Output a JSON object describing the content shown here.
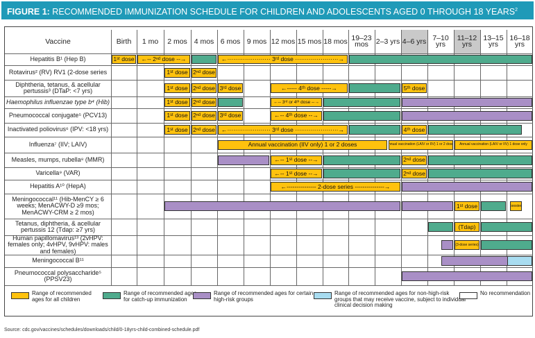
{
  "figure": {
    "label": "FIGURE 1:",
    "title": "RECOMMENDED IMMUNIZATION SCHEDULE FOR CHILDREN AND ADOLESCENTS AGED 0 THROUGH 18 YEARS",
    "title_sup": "2",
    "source": "Source: cdc.gov/vaccines/schedules/downloads/child/0-18yrs-child-combined-schedule.pdf"
  },
  "colors": {
    "banner": "#1f9ab8",
    "recommended": "#ffc20e",
    "catch_up": "#4fab8d",
    "high_risk": "#a98fc6",
    "non_high_risk": "#a8dcf0",
    "none": "#ffffff",
    "shaded_header": "#c9c9c9"
  },
  "header": {
    "vaccine_label": "Vaccine",
    "columns": [
      {
        "label": "Birth",
        "shaded": false
      },
      {
        "label": "1 mo",
        "shaded": false
      },
      {
        "label": "2 mos",
        "shaded": false
      },
      {
        "label": "4 mos",
        "shaded": false
      },
      {
        "label": "6 mos",
        "shaded": false
      },
      {
        "label": "9 mos",
        "shaded": false
      },
      {
        "label": "12 mos",
        "shaded": false
      },
      {
        "label": "15 mos",
        "shaded": false
      },
      {
        "label": "18 mos",
        "shaded": false
      },
      {
        "label": "19–23 mos",
        "shaded": false
      },
      {
        "label": "2–3 yrs",
        "shaded": false
      },
      {
        "label": "4–6 yrs",
        "shaded": true
      },
      {
        "label": "7–10 yrs",
        "shaded": false
      },
      {
        "label": "11–12 yrs",
        "shaded": true
      },
      {
        "label": "13–15 yrs",
        "shaded": false
      },
      {
        "label": "16–18 yrs",
        "shaded": false
      }
    ]
  },
  "rows": [
    {
      "name": "Hepatitis B¹ (Hep B)",
      "italic": false,
      "bars": [
        {
          "c": "y",
          "from": 0,
          "to": 1,
          "label": "1ˢᵗ dose"
        },
        {
          "c": "y",
          "from": 1,
          "to": 3,
          "label": "←-- 2ⁿᵈ dose --→"
        },
        {
          "c": "g",
          "from": 3,
          "to": 4,
          "label": ""
        },
        {
          "c": "y",
          "from": 4,
          "to": 9,
          "label": "←······················ 3ʳᵈ dose ······················→"
        },
        {
          "c": "g",
          "from": 9,
          "to": 16,
          "label": ""
        }
      ]
    },
    {
      "name": "Rotavirus² (RV) RV1 (2-dose series",
      "italic": false,
      "bars": [
        {
          "c": "y",
          "from": 2,
          "to": 3,
          "label": "1ˢᵗ dose"
        },
        {
          "c": "y",
          "from": 3,
          "to": 4,
          "label": "2ⁿᵈ dose"
        }
      ]
    },
    {
      "name": "Diphtheria, tetanus, & acellular pertussis³ (DTaP: <7 yrs)",
      "italic": false,
      "bars": [
        {
          "c": "y",
          "from": 2,
          "to": 3,
          "label": "1ˢᵗ dose"
        },
        {
          "c": "y",
          "from": 3,
          "to": 4,
          "label": "2ⁿᵈ dose"
        },
        {
          "c": "y",
          "from": 4,
          "to": 5,
          "label": "3ʳᵈ dose"
        },
        {
          "c": "y",
          "from": 6,
          "to": 9,
          "label": "←----- 4ᵗʰ dose -----→"
        },
        {
          "c": "g",
          "from": 9,
          "to": 11,
          "label": ""
        },
        {
          "c": "y",
          "from": 11,
          "to": 12,
          "label": "5ᵗʰ dose"
        }
      ]
    },
    {
      "name": "Haemophilus influenzae type b⁴ (Hib)",
      "italic": true,
      "bars": [
        {
          "c": "y",
          "from": 2,
          "to": 3,
          "label": "1ˢᵗ dose"
        },
        {
          "c": "y",
          "from": 3,
          "to": 4,
          "label": "2ⁿᵈ dose"
        },
        {
          "c": "g",
          "from": 4,
          "to": 5,
          "label": ""
        },
        {
          "c": "y",
          "from": 6,
          "to": 8,
          "label": "←-- 3ʳᵈ or 4ᵗʰ dose --→",
          "size": "small"
        },
        {
          "c": "g",
          "from": 8,
          "to": 11,
          "label": ""
        },
        {
          "c": "p",
          "from": 11,
          "to": 16,
          "label": ""
        }
      ]
    },
    {
      "name": "Pneumococcal conjugate⁵ (PCV13)",
      "italic": false,
      "bars": [
        {
          "c": "y",
          "from": 2,
          "to": 3,
          "label": "1ˢᵗ dose"
        },
        {
          "c": "y",
          "from": 3,
          "to": 4,
          "label": "2ⁿᵈ dose"
        },
        {
          "c": "y",
          "from": 4,
          "to": 5,
          "label": "3ʳᵈ dose"
        },
        {
          "c": "y",
          "from": 6,
          "to": 8,
          "label": "←-- 4ᵗʰ dose --→"
        },
        {
          "c": "g",
          "from": 8,
          "to": 11,
          "label": ""
        },
        {
          "c": "p",
          "from": 11,
          "to": 16,
          "label": ""
        }
      ]
    },
    {
      "name": "Inactivated poliovirus⁶ (IPV: <18 yrs)",
      "italic": false,
      "bars": [
        {
          "c": "y",
          "from": 2,
          "to": 3,
          "label": "1ˢᵗ dose"
        },
        {
          "c": "y",
          "from": 3,
          "to": 4,
          "label": "2ⁿᵈ dose"
        },
        {
          "c": "y",
          "from": 4,
          "to": 9,
          "label": "←······················ 3ʳᵈ dose ······················→"
        },
        {
          "c": "g",
          "from": 9,
          "to": 11,
          "label": ""
        },
        {
          "c": "y",
          "from": 11,
          "to": 12,
          "label": "4ᵗʰ dose"
        },
        {
          "c": "g",
          "from": 12,
          "to": 15.6,
          "label": ""
        }
      ]
    },
    {
      "name": "Influenza⁷ (IIV; LAIV)",
      "italic": false,
      "bars": [
        {
          "c": "y",
          "from": 4,
          "to": 10.5,
          "label": "Annual vaccination (IIV only) 1 or 2 doses"
        },
        {
          "c": "y",
          "from": 10.5,
          "to": 13,
          "label": "Annual vaccination (LAIV or IIV) 1 or 2 doses",
          "size": "tiny"
        },
        {
          "c": "y",
          "from": 13,
          "to": 16,
          "label": "Annual vaccination (LAIV or IIV) 1 dose only",
          "size": "tiny"
        }
      ]
    },
    {
      "name": "Measles, mumps, rubella⁸ (MMR)",
      "italic": false,
      "bars": [
        {
          "c": "p",
          "from": 4,
          "to": 6,
          "label": ""
        },
        {
          "c": "y",
          "from": 6,
          "to": 8,
          "label": "←-- 1ˢᵗ dose --→"
        },
        {
          "c": "g",
          "from": 8,
          "to": 11,
          "label": ""
        },
        {
          "c": "y",
          "from": 11,
          "to": 12,
          "label": "2ⁿᵈ dose"
        },
        {
          "c": "g",
          "from": 12,
          "to": 16,
          "label": ""
        }
      ]
    },
    {
      "name": "Varicella⁹ (VAR)",
      "italic": false,
      "bars": [
        {
          "c": "y",
          "from": 6,
          "to": 8,
          "label": "←-- 1ˢᵗ dose --→"
        },
        {
          "c": "g",
          "from": 8,
          "to": 11,
          "label": ""
        },
        {
          "c": "y",
          "from": 11,
          "to": 12,
          "label": "2ⁿᵈ dose"
        },
        {
          "c": "g",
          "from": 12,
          "to": 16,
          "label": ""
        }
      ]
    },
    {
      "name": "Hepatitis A¹⁰ (HepA)",
      "italic": false,
      "bars": [
        {
          "c": "y",
          "from": 6,
          "to": 11,
          "label": "←--------------- 2-dose series ---------------→"
        },
        {
          "c": "p",
          "from": 11,
          "to": 16,
          "label": ""
        }
      ]
    },
    {
      "name": "Meningococcal¹¹ (Hib-MenCY ≥ 6 weeks; MenACWY-D ≥9 mos; MenACWY-CRM ≥ 2 mos)",
      "italic": false,
      "bars": [
        {
          "c": "p",
          "from": 2,
          "to": 11,
          "label": ""
        },
        {
          "c": "p",
          "from": 11,
          "to": 13,
          "label": ""
        },
        {
          "c": "y",
          "from": 13,
          "to": 14,
          "label": "1ˢᵗ dose"
        },
        {
          "c": "g",
          "from": 14,
          "to": 15,
          "label": ""
        },
        {
          "c": "y",
          "from": 15.1,
          "to": 15.6,
          "label": "booster",
          "size": "tiny"
        }
      ]
    },
    {
      "name": "Tetanus, diphtheria, & acellular pertussis 12 (Tdap: ≥7 yrs)",
      "italic": false,
      "bars": [
        {
          "c": "g",
          "from": 12,
          "to": 13,
          "label": ""
        },
        {
          "c": "y",
          "from": 13,
          "to": 14,
          "label": "(Tdap)"
        },
        {
          "c": "g",
          "from": 14,
          "to": 16,
          "label": ""
        }
      ]
    },
    {
      "name": "Human papillomavirus¹³ (2vHPV: females only; 4vHPV, 9vHPV: males and females)",
      "italic": false,
      "bars": [
        {
          "c": "p",
          "from": 12.5,
          "to": 13,
          "label": ""
        },
        {
          "c": "y",
          "from": 13,
          "to": 14,
          "label": "(3-dose series)",
          "size": "tiny"
        },
        {
          "c": "g",
          "from": 14,
          "to": 16,
          "label": ""
        }
      ]
    },
    {
      "name": "Meningococcal B¹¹",
      "italic": false,
      "bars": [
        {
          "c": "p",
          "from": 12.5,
          "to": 16,
          "label": ""
        },
        {
          "c": "b",
          "from": 15,
          "to": 16,
          "label": ""
        }
      ]
    },
    {
      "name": "Pneumococcal polysaccharide⁵ (PPSV23)",
      "italic": false,
      "bars": [
        {
          "c": "p",
          "from": 11,
          "to": 16,
          "label": ""
        }
      ]
    }
  ],
  "legend": [
    {
      "c": "y",
      "label": "Range of recommended ages for all children"
    },
    {
      "c": "g",
      "label": "Range of recommended ages for catch-up immunization"
    },
    {
      "c": "p",
      "label": "Range of recommended ages for certain high-risk groups"
    },
    {
      "c": "b",
      "label": "Range of recommended ages for non-high-risk groups that may receive vaccine, subject to individual clinical decision making"
    },
    {
      "c": "w",
      "label": "No recommendation"
    }
  ]
}
